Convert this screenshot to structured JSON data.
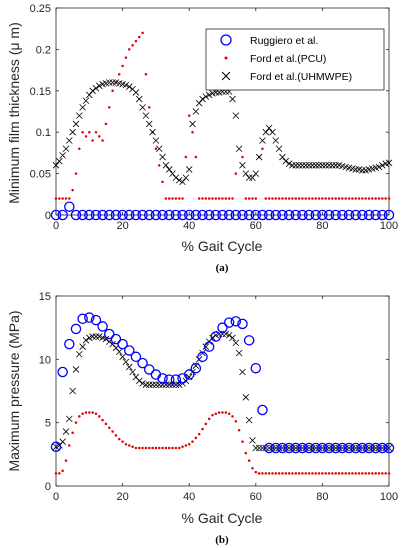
{
  "colors": {
    "ruggiero": "#0000ff",
    "pcu": "#e00000",
    "uhmwpe": "#000000",
    "axis": "#262626"
  },
  "chart_data": [
    {
      "type": "scatter",
      "sublabel": "(a)",
      "xlabel": "% Gait Cycle",
      "ylabel": "Minimum film thickness (μ m)",
      "xlim": [
        0,
        100
      ],
      "ylim": [
        0,
        0.25
      ],
      "xticks": [
        "0",
        "20",
        "40",
        "60",
        "80",
        "100"
      ],
      "yticks": [
        "0",
        "0.05",
        "0.1",
        "0.15",
        "0.2",
        "0.25"
      ],
      "grid": false,
      "legend_position": "top-right",
      "series": [
        {
          "name": "Ruggiero et al.",
          "marker": "circle",
          "x": [
            0,
            2,
            4,
            6,
            8,
            10,
            12,
            14,
            16,
            18,
            20,
            22,
            24,
            26,
            28,
            30,
            32,
            34,
            36,
            38,
            40,
            42,
            44,
            46,
            48,
            50,
            52,
            54,
            56,
            58,
            60,
            62,
            64,
            66,
            68,
            70,
            72,
            74,
            76,
            78,
            80,
            82,
            84,
            86,
            88,
            90,
            92,
            94,
            96,
            98,
            100
          ],
          "y": [
            0,
            0,
            0.01,
            0,
            0,
            0,
            0,
            0,
            0,
            0,
            0,
            0,
            0,
            0,
            0,
            0,
            0,
            0,
            0,
            0,
            0,
            0,
            0,
            0,
            0,
            0,
            0,
            0,
            0,
            0,
            0,
            0,
            0,
            0,
            0,
            0,
            0,
            0,
            0,
            0,
            0,
            0,
            0,
            0,
            0,
            0,
            0,
            0,
            0,
            0,
            0
          ]
        },
        {
          "name": "Ford et al.(PCU)",
          "marker": "dot",
          "x": [
            0,
            1,
            2,
            3,
            4,
            5,
            6,
            7,
            8,
            9,
            10,
            11,
            12,
            13,
            14,
            15,
            16,
            17,
            18,
            19,
            20,
            21,
            22,
            23,
            24,
            25,
            26,
            27,
            28,
            29,
            30,
            31,
            32,
            33,
            34,
            35,
            36,
            37,
            38,
            39,
            40,
            41,
            42,
            43,
            44,
            45,
            46,
            47,
            48,
            49,
            50,
            51,
            52,
            53,
            54,
            55,
            56,
            57,
            58,
            59,
            60,
            61,
            62,
            63,
            64,
            65,
            66,
            67,
            68,
            69,
            70,
            71,
            72,
            73,
            74,
            75,
            76,
            77,
            78,
            79,
            80,
            81,
            82,
            83,
            84,
            85,
            86,
            87,
            88,
            89,
            90,
            91,
            92,
            93,
            94,
            95,
            96,
            97,
            98,
            99,
            100
          ],
          "y": [
            0.02,
            0.02,
            0.02,
            0.02,
            0.02,
            0.03,
            0.05,
            0.08,
            0.1,
            0.095,
            0.1,
            0.09,
            0.1,
            0.095,
            0.09,
            0.11,
            0.13,
            0.15,
            0.16,
            0.17,
            0.18,
            0.19,
            0.2,
            0.205,
            0.21,
            0.215,
            0.22,
            0.17,
            0.13,
            0.1,
            0.08,
            0.06,
            0.04,
            0.02,
            0.02,
            0.02,
            0.02,
            0.02,
            0.02,
            0.07,
            0.12,
            0.1,
            0.07,
            0.02,
            0.02,
            0.02,
            0.02,
            0.02,
            0.02,
            0.02,
            0.02,
            0.02,
            0.02,
            0.02,
            0.05,
            0.17,
            0.07,
            0.02,
            0.02,
            0.02,
            0.02,
            0.07,
            0.08,
            0.02,
            0.02,
            0.02,
            0.02,
            0.02,
            0.02,
            0.02,
            0.02,
            0.02,
            0.02,
            0.02,
            0.02,
            0.02,
            0.02,
            0.02,
            0.02,
            0.02,
            0.02,
            0.02,
            0.02,
            0.02,
            0.02,
            0.02,
            0.02,
            0.02,
            0.02,
            0.02,
            0.02,
            0.02,
            0.02,
            0.02,
            0.02,
            0.02,
            0.02,
            0.02,
            0.02,
            0.02,
            0.02
          ]
        },
        {
          "name": "Ford et al.(UHMWPE)",
          "marker": "x",
          "x": [
            0,
            1,
            2,
            3,
            4,
            5,
            6,
            7,
            8,
            9,
            10,
            11,
            12,
            13,
            14,
            15,
            16,
            17,
            18,
            19,
            20,
            21,
            22,
            23,
            24,
            25,
            26,
            27,
            28,
            29,
            30,
            31,
            32,
            33,
            34,
            35,
            36,
            37,
            38,
            39,
            40,
            41,
            42,
            43,
            44,
            45,
            46,
            47,
            48,
            49,
            50,
            51,
            52,
            53,
            54,
            55,
            56,
            57,
            58,
            59,
            60,
            61,
            62,
            63,
            64,
            65,
            66,
            67,
            68,
            69,
            70,
            71,
            72,
            73,
            74,
            75,
            76,
            77,
            78,
            79,
            80,
            81,
            82,
            83,
            84,
            85,
            86,
            87,
            88,
            89,
            90,
            91,
            92,
            93,
            94,
            95,
            96,
            97,
            98,
            99,
            100
          ],
          "y": [
            0.06,
            0.065,
            0.072,
            0.08,
            0.09,
            0.1,
            0.11,
            0.12,
            0.13,
            0.138,
            0.145,
            0.15,
            0.153,
            0.156,
            0.158,
            0.159,
            0.16,
            0.16,
            0.16,
            0.159,
            0.158,
            0.157,
            0.155,
            0.152,
            0.148,
            0.14,
            0.13,
            0.12,
            0.11,
            0.1,
            0.09,
            0.08,
            0.07,
            0.06,
            0.055,
            0.05,
            0.045,
            0.042,
            0.04,
            0.045,
            0.055,
            0.11,
            0.125,
            0.135,
            0.14,
            0.143,
            0.145,
            0.147,
            0.148,
            0.148,
            0.149,
            0.149,
            0.149,
            0.14,
            0.12,
            0.08,
            0.06,
            0.05,
            0.045,
            0.045,
            0.05,
            0.07,
            0.09,
            0.1,
            0.105,
            0.1,
            0.09,
            0.08,
            0.07,
            0.065,
            0.062,
            0.06,
            0.06,
            0.06,
            0.06,
            0.06,
            0.06,
            0.06,
            0.06,
            0.06,
            0.06,
            0.06,
            0.06,
            0.06,
            0.06,
            0.06,
            0.059,
            0.058,
            0.057,
            0.056,
            0.055,
            0.055,
            0.054,
            0.054,
            0.055,
            0.056,
            0.057,
            0.058,
            0.06,
            0.062,
            0.063
          ]
        }
      ]
    },
    {
      "type": "scatter",
      "sublabel": "(b)",
      "xlabel": "% Gait Cycle",
      "ylabel": "Maximum pressure (MPa)",
      "xlim": [
        0,
        100
      ],
      "ylim": [
        0,
        15
      ],
      "xticks": [
        "0",
        "20",
        "40",
        "60",
        "80",
        "100"
      ],
      "yticks": [
        "0",
        "5",
        "10",
        "15"
      ],
      "grid": false,
      "series": [
        {
          "name": "Ruggiero et al.",
          "marker": "circle",
          "x": [
            0,
            2,
            4,
            6,
            8,
            10,
            12,
            14,
            16,
            18,
            20,
            22,
            24,
            26,
            28,
            30,
            32,
            34,
            36,
            38,
            40,
            42,
            44,
            46,
            48,
            50,
            52,
            54,
            56,
            58,
            60,
            62,
            64,
            66,
            68,
            70,
            72,
            74,
            76,
            78,
            80,
            82,
            84,
            86,
            88,
            90,
            92,
            94,
            96,
            98,
            100
          ],
          "y": [
            3.1,
            9.0,
            11.2,
            12.4,
            13.2,
            13.3,
            13.1,
            12.6,
            12.0,
            11.6,
            11.2,
            10.7,
            10.2,
            9.7,
            9.2,
            8.8,
            8.5,
            8.4,
            8.4,
            8.5,
            8.8,
            9.3,
            10.2,
            11.0,
            11.8,
            12.5,
            12.9,
            13.0,
            12.8,
            11.5,
            9.3,
            6.0,
            3.0,
            3.0,
            3.0,
            3.0,
            3.0,
            3.0,
            3.0,
            3.0,
            3.0,
            3.0,
            3.0,
            3.0,
            3.0,
            3.0,
            3.0,
            3.0,
            3.0,
            3.0,
            3.0
          ]
        },
        {
          "name": "Ford et al.(PCU)",
          "marker": "dot",
          "x": [
            0,
            1,
            2,
            3,
            4,
            5,
            6,
            7,
            8,
            9,
            10,
            11,
            12,
            13,
            14,
            15,
            16,
            17,
            18,
            19,
            20,
            21,
            22,
            23,
            24,
            25,
            26,
            27,
            28,
            29,
            30,
            31,
            32,
            33,
            34,
            35,
            36,
            37,
            38,
            39,
            40,
            41,
            42,
            43,
            44,
            45,
            46,
            47,
            48,
            49,
            50,
            51,
            52,
            53,
            54,
            55,
            56,
            57,
            58,
            59,
            60,
            61,
            62,
            63,
            64,
            65,
            66,
            67,
            68,
            69,
            70,
            71,
            72,
            73,
            74,
            75,
            76,
            77,
            78,
            79,
            80,
            81,
            82,
            83,
            84,
            85,
            86,
            87,
            88,
            89,
            90,
            91,
            92,
            93,
            94,
            95,
            96,
            97,
            98,
            99,
            100
          ],
          "y": [
            1.0,
            1.0,
            1.2,
            2.0,
            3.2,
            4.2,
            5.0,
            5.5,
            5.7,
            5.8,
            5.8,
            5.8,
            5.7,
            5.5,
            5.2,
            4.9,
            4.6,
            4.3,
            4.0,
            3.7,
            3.5,
            3.3,
            3.2,
            3.1,
            3.0,
            3.0,
            3.0,
            3.0,
            3.0,
            3.0,
            3.0,
            3.0,
            3.0,
            3.0,
            3.0,
            3.0,
            3.0,
            3.0,
            3.1,
            3.2,
            3.3,
            3.5,
            3.8,
            4.1,
            4.5,
            4.9,
            5.3,
            5.6,
            5.7,
            5.8,
            5.8,
            5.8,
            5.7,
            5.5,
            5.1,
            4.4,
            3.5,
            2.6,
            2.0,
            1.4,
            1.1,
            1.0,
            1.0,
            1.0,
            1.0,
            1.0,
            1.0,
            1.0,
            1.0,
            1.0,
            1.0,
            1.0,
            1.0,
            1.0,
            1.0,
            1.0,
            1.0,
            1.0,
            1.0,
            1.0,
            1.0,
            1.0,
            1.0,
            1.0,
            1.0,
            1.0,
            1.0,
            1.0,
            1.0,
            1.0,
            1.0,
            1.0,
            1.0,
            1.0,
            1.0,
            1.0,
            1.0,
            1.0,
            1.0,
            1.0,
            1.0
          ]
        },
        {
          "name": "Ford et al.(UHMWPE)",
          "marker": "x",
          "x": [
            0,
            1,
            2,
            3,
            4,
            5,
            6,
            7,
            8,
            9,
            10,
            11,
            12,
            13,
            14,
            15,
            16,
            17,
            18,
            19,
            20,
            21,
            22,
            23,
            24,
            25,
            26,
            27,
            28,
            29,
            30,
            31,
            32,
            33,
            34,
            35,
            36,
            37,
            38,
            39,
            40,
            41,
            42,
            43,
            44,
            45,
            46,
            47,
            48,
            49,
            50,
            51,
            52,
            53,
            54,
            55,
            56,
            57,
            58,
            59,
            60,
            61,
            62,
            63,
            64,
            65,
            66,
            67,
            68,
            69,
            70,
            71,
            72,
            73,
            74,
            75,
            76,
            77,
            78,
            79,
            80,
            81,
            82,
            83,
            84,
            85,
            86,
            87,
            88,
            89,
            90,
            91,
            92,
            93,
            94,
            95,
            96,
            97,
            98,
            99,
            100
          ],
          "y": [
            3.1,
            3.2,
            3.5,
            4.3,
            5.3,
            7.5,
            9.2,
            10.4,
            11.0,
            11.5,
            11.7,
            11.8,
            11.8,
            11.8,
            11.7,
            11.6,
            11.4,
            11.2,
            10.9,
            10.6,
            10.2,
            9.8,
            9.4,
            9.0,
            8.6,
            8.3,
            8.1,
            8.0,
            8.0,
            8.0,
            8.0,
            8.0,
            8.0,
            8.0,
            8.0,
            8.0,
            8.0,
            8.0,
            8.1,
            8.3,
            8.6,
            9.0,
            9.5,
            10.0,
            10.5,
            11.0,
            11.4,
            11.7,
            11.9,
            12.0,
            12.0,
            12.0,
            11.9,
            11.7,
            11.3,
            10.5,
            9.0,
            7.0,
            5.2,
            3.6,
            3.0,
            3.0,
            3.0,
            3.0,
            3.0,
            3.0,
            3.0,
            3.0,
            3.0,
            3.0,
            3.0,
            3.0,
            3.0,
            3.0,
            3.0,
            3.0,
            3.0,
            3.0,
            3.0,
            3.0,
            3.0,
            3.0,
            3.0,
            3.0,
            3.0,
            3.0,
            3.0,
            3.0,
            3.0,
            3.0,
            3.0,
            3.0,
            3.0,
            3.0,
            3.0,
            3.0,
            3.0,
            3.0,
            3.0,
            3.0,
            3.0
          ]
        }
      ]
    }
  ]
}
